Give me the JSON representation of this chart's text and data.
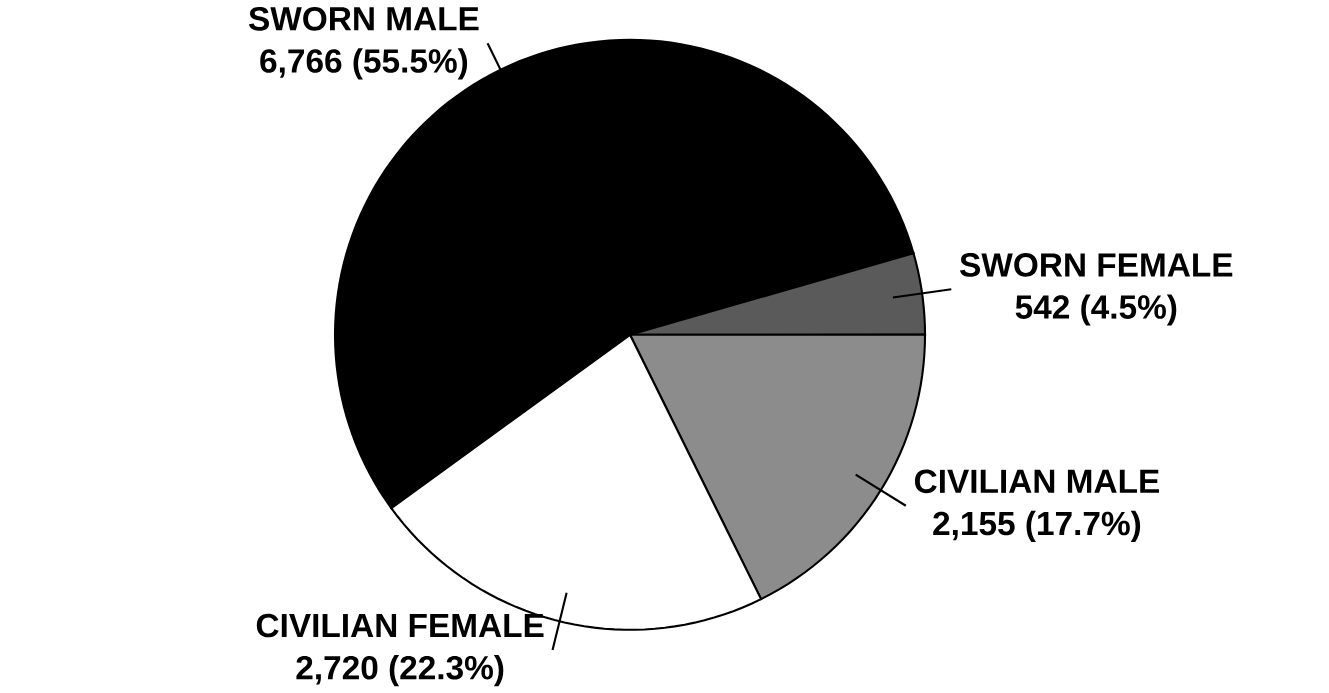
{
  "chart_data": {
    "type": "pie",
    "categories": [
      "SWORN MALE",
      "SWORN FEMALE",
      "CIVILIAN MALE",
      "CIVILIAN FEMALE"
    ],
    "values": [
      6766,
      542,
      2155,
      2720
    ],
    "value_labels": [
      "6,766 (55.5%)",
      "542 (4.5%)",
      "2,155 (17.7%)",
      "2,720 (22.3%)"
    ],
    "colors": [
      "#000000",
      "#5a5a5a",
      "#8c8c8c",
      "#ffffff"
    ]
  }
}
